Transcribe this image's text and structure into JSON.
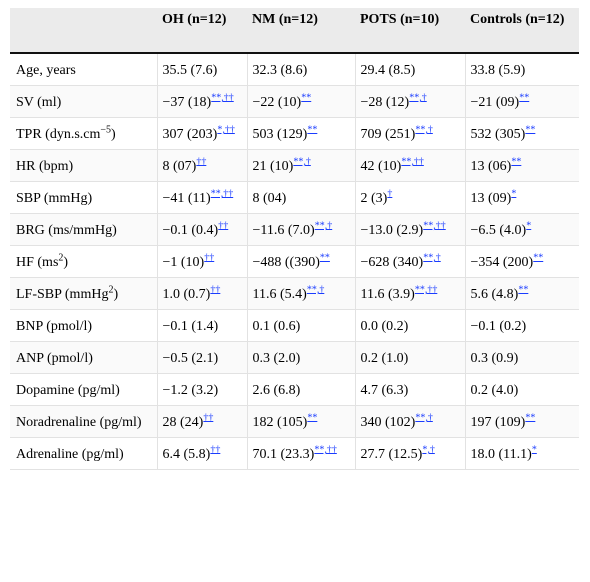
{
  "header": {
    "col0": "",
    "col1": "OH (n=12)",
    "col2": "NM (n=12)",
    "col3": "POTS (n=10)",
    "col4": "Controls (n=12)"
  },
  "rows": [
    {
      "label": "Age, years",
      "label_sup": "",
      "cells": [
        {
          "v": "35.5 (7.6)",
          "r": ""
        },
        {
          "v": "32.3 (8.6)",
          "r": ""
        },
        {
          "v": "29.4 (8.5)",
          "r": ""
        },
        {
          "v": "33.8 (5.9)",
          "r": ""
        }
      ]
    },
    {
      "label": "SV (ml)",
      "label_sup": "",
      "cells": [
        {
          "v": "−37 (18)",
          "r": "**,††"
        },
        {
          "v": "−22 (10)",
          "r": "**"
        },
        {
          "v": "−28 (12)",
          "r": "**,†"
        },
        {
          "v": "−21 (09)",
          "r": "**"
        }
      ]
    },
    {
      "label": "TPR (dyn.s.cm",
      "label_sup": "−5",
      "label_tail": ")",
      "cells": [
        {
          "v": "307 (203)",
          "r": "*,††"
        },
        {
          "v": "503 (129)",
          "r": "**"
        },
        {
          "v": "709 (251)",
          "r": "**,†"
        },
        {
          "v": "532 (305)",
          "r": "**"
        }
      ]
    },
    {
      "label": "HR (bpm)",
      "label_sup": "",
      "cells": [
        {
          "v": "8 (07)",
          "r": "††"
        },
        {
          "v": "21 (10)",
          "r": "**,†"
        },
        {
          "v": "42 (10)",
          "r": "**,††"
        },
        {
          "v": "13 (06)",
          "r": "**"
        }
      ]
    },
    {
      "label": "SBP (mmHg)",
      "label_sup": "",
      "cells": [
        {
          "v": "−41 (11)",
          "r": "**,††"
        },
        {
          "v": "8 (04)",
          "r": ""
        },
        {
          "v": "2 (3)",
          "r": "†"
        },
        {
          "v": "13 (09)",
          "r": "*"
        }
      ]
    },
    {
      "label": "BRG (ms/mmHg)",
      "label_sup": "",
      "cells": [
        {
          "v": "−0.1 (0.4)",
          "r": "††"
        },
        {
          "v": "−11.6 (7.0)",
          "r": "**,†"
        },
        {
          "v": "−13.0 (2.9)",
          "r": "**,††"
        },
        {
          "v": "−6.5 (4.0)",
          "r": "*"
        }
      ]
    },
    {
      "label": "HF (ms",
      "label_sup": "2",
      "label_tail": ")",
      "cells": [
        {
          "v": "−1 (10)",
          "r": "††"
        },
        {
          "v": "−488 ((390)",
          "r": "**"
        },
        {
          "v": "−628 (340)",
          "r": "**,†"
        },
        {
          "v": "−354 (200)",
          "r": "**"
        }
      ]
    },
    {
      "label": "LF-SBP (mmHg",
      "label_sup": "2",
      "label_tail": ")",
      "cells": [
        {
          "v": "1.0 (0.7)",
          "r": "††"
        },
        {
          "v": "11.6 (5.4)",
          "r": "**,†"
        },
        {
          "v": "11.6 (3.9)",
          "r": "**,††"
        },
        {
          "v": "5.6 (4.8)",
          "r": "**"
        }
      ]
    },
    {
      "label": "BNP (pmol/l)",
      "label_sup": "",
      "cells": [
        {
          "v": "−0.1 (1.4)",
          "r": ""
        },
        {
          "v": "0.1 (0.6)",
          "r": ""
        },
        {
          "v": "0.0 (0.2)",
          "r": ""
        },
        {
          "v": "−0.1 (0.2)",
          "r": ""
        }
      ]
    },
    {
      "label": "ANP (pmol/l)",
      "label_sup": "",
      "cells": [
        {
          "v": "−0.5 (2.1)",
          "r": ""
        },
        {
          "v": "0.3 (2.0)",
          "r": ""
        },
        {
          "v": "0.2 (1.0)",
          "r": ""
        },
        {
          "v": "0.3 (0.9)",
          "r": ""
        }
      ]
    },
    {
      "label": "Dopamine (pg/ml)",
      "label_sup": "",
      "cells": [
        {
          "v": "−1.2 (3.2)",
          "r": ""
        },
        {
          "v": "2.6 (6.8)",
          "r": ""
        },
        {
          "v": "4.7 (6.3)",
          "r": ""
        },
        {
          "v": "0.2 (4.0)",
          "r": ""
        }
      ]
    },
    {
      "label": "Noradrenaline (pg/ml)",
      "label_sup": "",
      "cells": [
        {
          "v": "28 (24)",
          "r": "††"
        },
        {
          "v": "182 (105)",
          "r": "**"
        },
        {
          "v": "340 (102)",
          "r": "**,†"
        },
        {
          "v": "197 (109)",
          "r": "**"
        }
      ]
    },
    {
      "label": "Adrenaline (pg/ml)",
      "label_sup": "",
      "cells": [
        {
          "v": "6.4 (5.8)",
          "r": "††"
        },
        {
          "v": "70.1 (23.3)",
          "r": "**,††"
        },
        {
          "v": "27.7 (12.5)",
          "r": "*,†"
        },
        {
          "v": "18.0 (11.1)",
          "r": "*"
        }
      ]
    }
  ]
}
